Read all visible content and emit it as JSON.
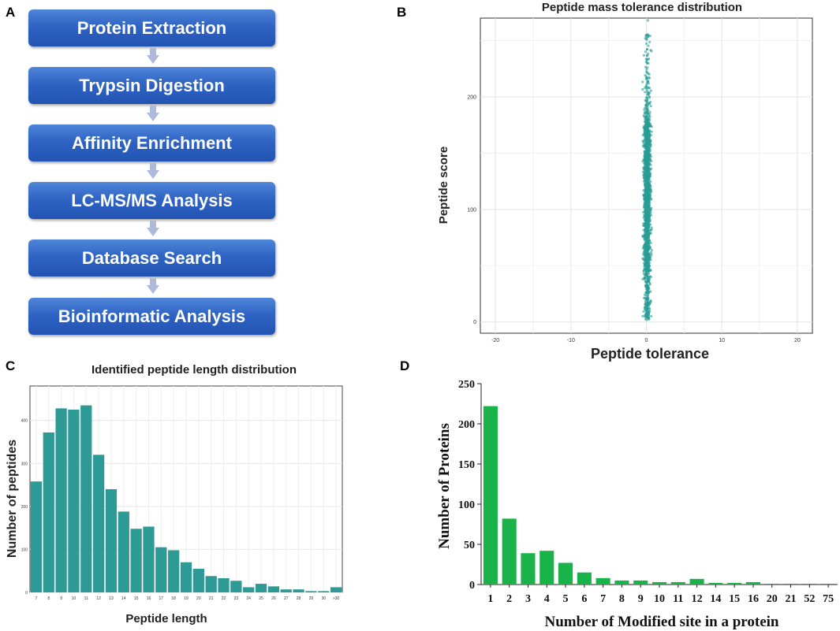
{
  "panels": {
    "a": {
      "letter": "A"
    },
    "b": {
      "letter": "B"
    },
    "c": {
      "letter": "C"
    },
    "d": {
      "letter": "D"
    }
  },
  "flowchart": {
    "box_gradient": [
      "#4f86d8",
      "#2253b3"
    ],
    "steps": [
      "Protein Extraction",
      "Trypsin Digestion",
      "Affinity Enrichment",
      "LC-MS/MS Analysis",
      "Database Search",
      "Bioinformatic Analysis"
    ]
  },
  "chart_data": [
    {
      "panel": "B",
      "type": "scatter",
      "title": "Peptide mass tolerance distribution",
      "xlabel": "Peptide tolerance",
      "ylabel": "Peptide score",
      "xlim": [
        -22,
        22
      ],
      "ylim": [
        -10,
        270
      ],
      "xticks": [
        -20,
        -10,
        0,
        10,
        20
      ],
      "yticks": [
        0,
        100,
        200
      ],
      "color": "#2a9d96",
      "grid": true,
      "summary": {
        "x_center": 0.1,
        "x_spread_sd": 0.3,
        "y_core_range": [
          45,
          175
        ],
        "y_min": 2,
        "y_max": 268
      }
    },
    {
      "panel": "C",
      "type": "bar",
      "title": "Identified peptide length distribution",
      "xlabel": "Peptide length",
      "ylabel": "Number of peptides",
      "color": "#2e9a96",
      "categories": [
        "7",
        "8",
        "9",
        "10",
        "11",
        "12",
        "13",
        "14",
        "15",
        "16",
        "17",
        "18",
        "19",
        "20",
        "21",
        "22",
        "23",
        "24",
        "25",
        "26",
        "27",
        "28",
        "29",
        "30",
        ">30"
      ],
      "values": [
        258,
        372,
        428,
        425,
        435,
        320,
        240,
        188,
        148,
        153,
        105,
        98,
        70,
        55,
        38,
        33,
        27,
        12,
        20,
        14,
        7,
        7,
        3,
        3,
        12
      ],
      "ylim": [
        0,
        480
      ],
      "yticks": [
        0,
        100,
        200,
        300,
        400
      ],
      "grid": true
    },
    {
      "panel": "D",
      "type": "bar",
      "xlabel": "Number of Modified site in a protein",
      "ylabel": "Number of Proteins",
      "color": "#19b34a",
      "categories": [
        "1",
        "2",
        "3",
        "4",
        "5",
        "6",
        "7",
        "8",
        "9",
        "10",
        "11",
        "12",
        "14",
        "15",
        "16",
        "20",
        "21",
        "52",
        "75"
      ],
      "values": [
        222,
        82,
        39,
        42,
        27,
        15,
        8,
        5,
        5,
        3,
        3,
        7,
        2,
        2,
        3,
        1,
        1,
        1,
        1
      ],
      "ylim": [
        0,
        250
      ],
      "yticks": [
        0,
        50,
        100,
        150,
        200,
        250
      ],
      "grid": false
    }
  ]
}
